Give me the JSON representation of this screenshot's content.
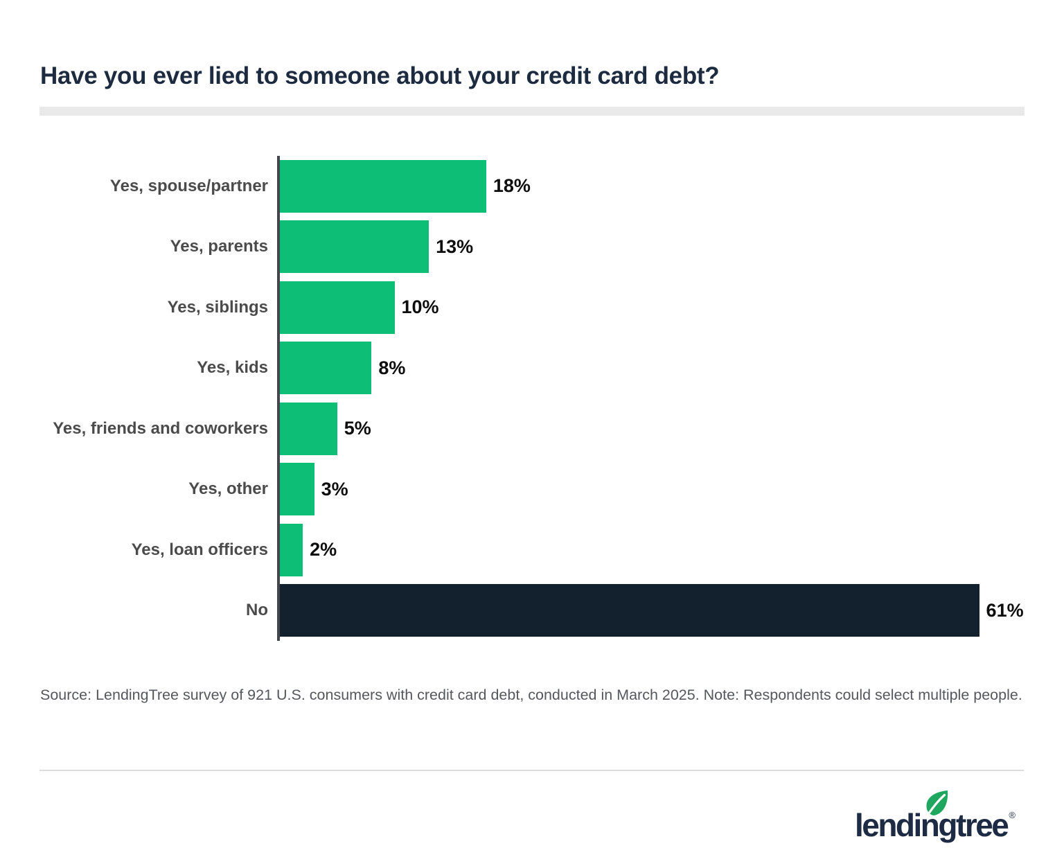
{
  "title": "Have you ever lied to someone about your credit card debt?",
  "chart_data": {
    "type": "bar",
    "orientation": "horizontal",
    "title": "Have you ever lied to someone about your credit card debt?",
    "categories": [
      "Yes, spouse/partner",
      "Yes, parents",
      "Yes, siblings",
      "Yes, kids",
      "Yes, friends and coworkers",
      "Yes, other",
      "Yes, loan officers",
      "No"
    ],
    "values": [
      18,
      13,
      10,
      8,
      5,
      3,
      2,
      61
    ],
    "value_labels": [
      "18%",
      "13%",
      "10%",
      "8%",
      "5%",
      "3%",
      "2%",
      "61%"
    ],
    "bar_colors": [
      "#0dbe76",
      "#0dbe76",
      "#0dbe76",
      "#0dbe76",
      "#0dbe76",
      "#0dbe76",
      "#0dbe76",
      "#13202e"
    ],
    "xlabel": "",
    "ylabel": "",
    "xlim": [
      0,
      65
    ],
    "grid": false,
    "legend": "none",
    "value_label_position": "right-of-bar"
  },
  "colors": {
    "bar_green": "#0dbe76",
    "bar_navy": "#13202e",
    "title_navy": "#1c2b3f",
    "axis_gray": "#43474c",
    "label_gray": "#4b4b4b",
    "source_gray": "#55575c",
    "divider_gray": "#e9e9e9",
    "logo_navy": "#1e2b44",
    "leaf_green": "#1fa75f"
  },
  "source_note": "Source: LendingTree survey of 921 U.S. consumers with credit card debt, conducted in March 2025. Note: Respondents could select multiple people.",
  "logo": {
    "text": "lendingtree",
    "registered_mark": "®",
    "leaf_icon": "leaf-icon"
  }
}
